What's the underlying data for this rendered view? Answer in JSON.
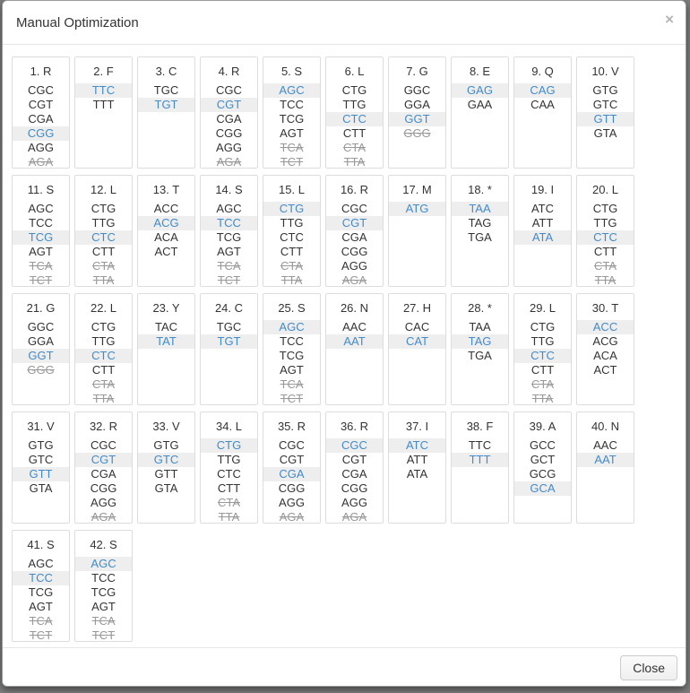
{
  "modal": {
    "title": "Manual Optimization",
    "close_icon": "×",
    "footer": {
      "close_label": "Close"
    }
  },
  "colors": {
    "selected_text": "#428bca",
    "selected_bg": "#eeeeee",
    "excluded_text": "#999999",
    "normal_text": "#333333",
    "cell_border": "#dddddd",
    "backdrop": "#7e7e7e"
  },
  "positions": [
    {
      "label": "1. R",
      "codons": [
        {
          "seq": "CGC",
          "state": "normal"
        },
        {
          "seq": "CGT",
          "state": "normal"
        },
        {
          "seq": "CGA",
          "state": "normal"
        },
        {
          "seq": "CGG",
          "state": "selected"
        },
        {
          "seq": "AGG",
          "state": "normal"
        },
        {
          "seq": "AGA",
          "state": "excluded"
        }
      ]
    },
    {
      "label": "2. F",
      "codons": [
        {
          "seq": "TTC",
          "state": "selected"
        },
        {
          "seq": "TTT",
          "state": "normal"
        }
      ]
    },
    {
      "label": "3. C",
      "codons": [
        {
          "seq": "TGC",
          "state": "normal"
        },
        {
          "seq": "TGT",
          "state": "selected"
        }
      ]
    },
    {
      "label": "4. R",
      "codons": [
        {
          "seq": "CGC",
          "state": "normal"
        },
        {
          "seq": "CGT",
          "state": "selected"
        },
        {
          "seq": "CGA",
          "state": "normal"
        },
        {
          "seq": "CGG",
          "state": "normal"
        },
        {
          "seq": "AGG",
          "state": "normal"
        },
        {
          "seq": "AGA",
          "state": "excluded"
        }
      ]
    },
    {
      "label": "5. S",
      "codons": [
        {
          "seq": "AGC",
          "state": "selected"
        },
        {
          "seq": "TCC",
          "state": "normal"
        },
        {
          "seq": "TCG",
          "state": "normal"
        },
        {
          "seq": "AGT",
          "state": "normal"
        },
        {
          "seq": "TCA",
          "state": "excluded"
        },
        {
          "seq": "TCT",
          "state": "excluded"
        }
      ]
    },
    {
      "label": "6. L",
      "codons": [
        {
          "seq": "CTG",
          "state": "normal"
        },
        {
          "seq": "TTG",
          "state": "normal"
        },
        {
          "seq": "CTC",
          "state": "selected"
        },
        {
          "seq": "CTT",
          "state": "normal"
        },
        {
          "seq": "CTA",
          "state": "excluded"
        },
        {
          "seq": "TTA",
          "state": "excluded"
        }
      ]
    },
    {
      "label": "7. G",
      "codons": [
        {
          "seq": "GGC",
          "state": "normal"
        },
        {
          "seq": "GGA",
          "state": "normal"
        },
        {
          "seq": "GGT",
          "state": "selected"
        },
        {
          "seq": "GGG",
          "state": "excluded"
        }
      ]
    },
    {
      "label": "8. E",
      "codons": [
        {
          "seq": "GAG",
          "state": "selected"
        },
        {
          "seq": "GAA",
          "state": "normal"
        }
      ]
    },
    {
      "label": "9. Q",
      "codons": [
        {
          "seq": "CAG",
          "state": "selected"
        },
        {
          "seq": "CAA",
          "state": "normal"
        }
      ]
    },
    {
      "label": "10. V",
      "codons": [
        {
          "seq": "GTG",
          "state": "normal"
        },
        {
          "seq": "GTC",
          "state": "normal"
        },
        {
          "seq": "GTT",
          "state": "selected"
        },
        {
          "seq": "GTA",
          "state": "normal"
        }
      ]
    },
    {
      "label": "11. S",
      "codons": [
        {
          "seq": "AGC",
          "state": "normal"
        },
        {
          "seq": "TCC",
          "state": "normal"
        },
        {
          "seq": "TCG",
          "state": "selected"
        },
        {
          "seq": "AGT",
          "state": "normal"
        },
        {
          "seq": "TCA",
          "state": "excluded"
        },
        {
          "seq": "TCT",
          "state": "excluded"
        }
      ]
    },
    {
      "label": "12. L",
      "codons": [
        {
          "seq": "CTG",
          "state": "normal"
        },
        {
          "seq": "TTG",
          "state": "normal"
        },
        {
          "seq": "CTC",
          "state": "selected"
        },
        {
          "seq": "CTT",
          "state": "normal"
        },
        {
          "seq": "CTA",
          "state": "excluded"
        },
        {
          "seq": "TTA",
          "state": "excluded"
        }
      ]
    },
    {
      "label": "13. T",
      "codons": [
        {
          "seq": "ACC",
          "state": "normal"
        },
        {
          "seq": "ACG",
          "state": "selected"
        },
        {
          "seq": "ACA",
          "state": "normal"
        },
        {
          "seq": "ACT",
          "state": "normal"
        }
      ]
    },
    {
      "label": "14. S",
      "codons": [
        {
          "seq": "AGC",
          "state": "normal"
        },
        {
          "seq": "TCC",
          "state": "selected"
        },
        {
          "seq": "TCG",
          "state": "normal"
        },
        {
          "seq": "AGT",
          "state": "normal"
        },
        {
          "seq": "TCA",
          "state": "excluded"
        },
        {
          "seq": "TCT",
          "state": "excluded"
        }
      ]
    },
    {
      "label": "15. L",
      "codons": [
        {
          "seq": "CTG",
          "state": "selected"
        },
        {
          "seq": "TTG",
          "state": "normal"
        },
        {
          "seq": "CTC",
          "state": "normal"
        },
        {
          "seq": "CTT",
          "state": "normal"
        },
        {
          "seq": "CTA",
          "state": "excluded"
        },
        {
          "seq": "TTA",
          "state": "excluded"
        }
      ]
    },
    {
      "label": "16. R",
      "codons": [
        {
          "seq": "CGC",
          "state": "normal"
        },
        {
          "seq": "CGT",
          "state": "selected"
        },
        {
          "seq": "CGA",
          "state": "normal"
        },
        {
          "seq": "CGG",
          "state": "normal"
        },
        {
          "seq": "AGG",
          "state": "normal"
        },
        {
          "seq": "AGA",
          "state": "excluded"
        }
      ]
    },
    {
      "label": "17. M",
      "codons": [
        {
          "seq": "ATG",
          "state": "selected"
        }
      ]
    },
    {
      "label": "18. *",
      "codons": [
        {
          "seq": "TAA",
          "state": "selected"
        },
        {
          "seq": "TAG",
          "state": "normal"
        },
        {
          "seq": "TGA",
          "state": "normal"
        }
      ]
    },
    {
      "label": "19. I",
      "codons": [
        {
          "seq": "ATC",
          "state": "normal"
        },
        {
          "seq": "ATT",
          "state": "normal"
        },
        {
          "seq": "ATA",
          "state": "selected"
        }
      ]
    },
    {
      "label": "20. L",
      "codons": [
        {
          "seq": "CTG",
          "state": "normal"
        },
        {
          "seq": "TTG",
          "state": "normal"
        },
        {
          "seq": "CTC",
          "state": "selected"
        },
        {
          "seq": "CTT",
          "state": "normal"
        },
        {
          "seq": "CTA",
          "state": "excluded"
        },
        {
          "seq": "TTA",
          "state": "excluded"
        }
      ]
    },
    {
      "label": "21. G",
      "codons": [
        {
          "seq": "GGC",
          "state": "normal"
        },
        {
          "seq": "GGA",
          "state": "normal"
        },
        {
          "seq": "GGT",
          "state": "selected"
        },
        {
          "seq": "GGG",
          "state": "excluded"
        }
      ]
    },
    {
      "label": "22. L",
      "codons": [
        {
          "seq": "CTG",
          "state": "normal"
        },
        {
          "seq": "TTG",
          "state": "normal"
        },
        {
          "seq": "CTC",
          "state": "selected"
        },
        {
          "seq": "CTT",
          "state": "normal"
        },
        {
          "seq": "CTA",
          "state": "excluded"
        },
        {
          "seq": "TTA",
          "state": "excluded"
        }
      ]
    },
    {
      "label": "23. Y",
      "codons": [
        {
          "seq": "TAC",
          "state": "normal"
        },
        {
          "seq": "TAT",
          "state": "selected"
        }
      ]
    },
    {
      "label": "24. C",
      "codons": [
        {
          "seq": "TGC",
          "state": "normal"
        },
        {
          "seq": "TGT",
          "state": "selected"
        }
      ]
    },
    {
      "label": "25. S",
      "codons": [
        {
          "seq": "AGC",
          "state": "selected"
        },
        {
          "seq": "TCC",
          "state": "normal"
        },
        {
          "seq": "TCG",
          "state": "normal"
        },
        {
          "seq": "AGT",
          "state": "normal"
        },
        {
          "seq": "TCA",
          "state": "excluded"
        },
        {
          "seq": "TCT",
          "state": "excluded"
        }
      ]
    },
    {
      "label": "26. N",
      "codons": [
        {
          "seq": "AAC",
          "state": "normal"
        },
        {
          "seq": "AAT",
          "state": "selected"
        }
      ]
    },
    {
      "label": "27. H",
      "codons": [
        {
          "seq": "CAC",
          "state": "normal"
        },
        {
          "seq": "CAT",
          "state": "selected"
        }
      ]
    },
    {
      "label": "28. *",
      "codons": [
        {
          "seq": "TAA",
          "state": "normal"
        },
        {
          "seq": "TAG",
          "state": "selected"
        },
        {
          "seq": "TGA",
          "state": "normal"
        }
      ]
    },
    {
      "label": "29. L",
      "codons": [
        {
          "seq": "CTG",
          "state": "normal"
        },
        {
          "seq": "TTG",
          "state": "normal"
        },
        {
          "seq": "CTC",
          "state": "selected"
        },
        {
          "seq": "CTT",
          "state": "normal"
        },
        {
          "seq": "CTA",
          "state": "excluded"
        },
        {
          "seq": "TTA",
          "state": "excluded"
        }
      ]
    },
    {
      "label": "30. T",
      "codons": [
        {
          "seq": "ACC",
          "state": "selected"
        },
        {
          "seq": "ACG",
          "state": "normal"
        },
        {
          "seq": "ACA",
          "state": "normal"
        },
        {
          "seq": "ACT",
          "state": "normal"
        }
      ]
    },
    {
      "label": "31. V",
      "codons": [
        {
          "seq": "GTG",
          "state": "normal"
        },
        {
          "seq": "GTC",
          "state": "normal"
        },
        {
          "seq": "GTT",
          "state": "selected"
        },
        {
          "seq": "GTA",
          "state": "normal"
        }
      ]
    },
    {
      "label": "32. R",
      "codons": [
        {
          "seq": "CGC",
          "state": "normal"
        },
        {
          "seq": "CGT",
          "state": "selected"
        },
        {
          "seq": "CGA",
          "state": "normal"
        },
        {
          "seq": "CGG",
          "state": "normal"
        },
        {
          "seq": "AGG",
          "state": "normal"
        },
        {
          "seq": "AGA",
          "state": "excluded"
        }
      ]
    },
    {
      "label": "33. V",
      "codons": [
        {
          "seq": "GTG",
          "state": "normal"
        },
        {
          "seq": "GTC",
          "state": "selected"
        },
        {
          "seq": "GTT",
          "state": "normal"
        },
        {
          "seq": "GTA",
          "state": "normal"
        }
      ]
    },
    {
      "label": "34. L",
      "codons": [
        {
          "seq": "CTG",
          "state": "selected"
        },
        {
          "seq": "TTG",
          "state": "normal"
        },
        {
          "seq": "CTC",
          "state": "normal"
        },
        {
          "seq": "CTT",
          "state": "normal"
        },
        {
          "seq": "CTA",
          "state": "excluded"
        },
        {
          "seq": "TTA",
          "state": "excluded"
        }
      ]
    },
    {
      "label": "35. R",
      "codons": [
        {
          "seq": "CGC",
          "state": "normal"
        },
        {
          "seq": "CGT",
          "state": "normal"
        },
        {
          "seq": "CGA",
          "state": "selected"
        },
        {
          "seq": "CGG",
          "state": "normal"
        },
        {
          "seq": "AGG",
          "state": "normal"
        },
        {
          "seq": "AGA",
          "state": "excluded"
        }
      ]
    },
    {
      "label": "36. R",
      "codons": [
        {
          "seq": "CGC",
          "state": "selected"
        },
        {
          "seq": "CGT",
          "state": "normal"
        },
        {
          "seq": "CGA",
          "state": "normal"
        },
        {
          "seq": "CGG",
          "state": "normal"
        },
        {
          "seq": "AGG",
          "state": "normal"
        },
        {
          "seq": "AGA",
          "state": "excluded"
        }
      ]
    },
    {
      "label": "37. I",
      "codons": [
        {
          "seq": "ATC",
          "state": "selected"
        },
        {
          "seq": "ATT",
          "state": "normal"
        },
        {
          "seq": "ATA",
          "state": "normal"
        }
      ]
    },
    {
      "label": "38. F",
      "codons": [
        {
          "seq": "TTC",
          "state": "normal"
        },
        {
          "seq": "TTT",
          "state": "selected"
        }
      ]
    },
    {
      "label": "39. A",
      "codons": [
        {
          "seq": "GCC",
          "state": "normal"
        },
        {
          "seq": "GCT",
          "state": "normal"
        },
        {
          "seq": "GCG",
          "state": "normal"
        },
        {
          "seq": "GCA",
          "state": "selected"
        }
      ]
    },
    {
      "label": "40. N",
      "codons": [
        {
          "seq": "AAC",
          "state": "normal"
        },
        {
          "seq": "AAT",
          "state": "selected"
        }
      ]
    },
    {
      "label": "41. S",
      "codons": [
        {
          "seq": "AGC",
          "state": "normal"
        },
        {
          "seq": "TCC",
          "state": "selected"
        },
        {
          "seq": "TCG",
          "state": "normal"
        },
        {
          "seq": "AGT",
          "state": "normal"
        },
        {
          "seq": "TCA",
          "state": "excluded"
        },
        {
          "seq": "TCT",
          "state": "excluded"
        }
      ]
    },
    {
      "label": "42. S",
      "codons": [
        {
          "seq": "AGC",
          "state": "selected"
        },
        {
          "seq": "TCC",
          "state": "normal"
        },
        {
          "seq": "TCG",
          "state": "normal"
        },
        {
          "seq": "AGT",
          "state": "normal"
        },
        {
          "seq": "TCA",
          "state": "excluded"
        },
        {
          "seq": "TCT",
          "state": "excluded"
        }
      ]
    }
  ]
}
